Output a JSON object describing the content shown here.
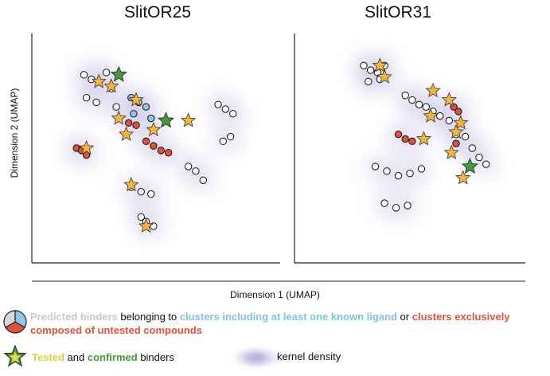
{
  "chart_data": [
    {
      "type": "scatter",
      "title": "SlitOR25",
      "xlabel": "Dimension 1 (UMAP)",
      "ylabel": "Dimension 2 (UMAP)",
      "grid": false,
      "clusters": [
        {
          "category": "untested",
          "x": [
            2.1,
            2.4,
            2.7,
            3.0,
            3.2,
            2.2,
            2.6,
            3.4
          ],
          "y": [
            8.2,
            8.0,
            7.9,
            8.3,
            7.6,
            7.2,
            7.0,
            6.8
          ]
        },
        {
          "category": "known_ligand",
          "x": [
            4.0,
            4.3,
            4.6,
            4.1,
            4.8
          ],
          "y": [
            7.2,
            7.0,
            6.8,
            6.5,
            6.3
          ]
        },
        {
          "category": "exclusive_untested",
          "x": [
            1.8,
            2.0,
            2.2,
            4.6,
            4.9,
            5.2,
            5.5,
            3.9,
            4.2
          ],
          "y": [
            5.0,
            4.9,
            4.7,
            5.3,
            5.1,
            4.9,
            4.8,
            6.1,
            6.0
          ]
        },
        {
          "category": "untested",
          "x": [
            4.0,
            4.4,
            4.8,
            4.4,
            4.6,
            4.9
          ],
          "y": [
            3.3,
            3.1,
            3.0,
            2.0,
            1.8,
            1.6
          ]
        },
        {
          "category": "untested",
          "x": [
            7.5,
            7.8,
            8.1,
            7.7,
            8.0,
            6.3,
            6.6,
            6.9
          ],
          "y": [
            6.9,
            6.7,
            6.5,
            5.3,
            5.5,
            4.2,
            4.0,
            3.6
          ]
        }
      ],
      "confirmed_binders": [
        {
          "x": 2.7,
          "y": 7.9
        },
        {
          "x": 3.2,
          "y": 7.7
        },
        {
          "x": 4.2,
          "y": 7.1
        },
        {
          "x": 3.5,
          "y": 6.3
        },
        {
          "x": 4.9,
          "y": 5.8
        },
        {
          "x": 3.8,
          "y": 5.6
        },
        {
          "x": 2.2,
          "y": 5.0
        },
        {
          "x": 4.0,
          "y": 3.4
        },
        {
          "x": 4.6,
          "y": 1.6
        },
        {
          "x": 6.3,
          "y": 6.2
        }
      ],
      "tested_binders": [
        {
          "x": 3.5,
          "y": 8.2
        },
        {
          "x": 5.4,
          "y": 6.2
        }
      ]
    },
    {
      "type": "scatter",
      "title": "SlitOR31",
      "xlabel": "Dimension 1 (UMAP)",
      "ylabel": "Dimension 2 (UMAP)",
      "grid": false,
      "clusters": [
        {
          "category": "untested",
          "x": [
            3.0,
            3.3,
            3.6,
            3.9,
            3.2,
            3.7
          ],
          "y": [
            8.6,
            8.4,
            8.3,
            8.6,
            7.9,
            8.0
          ]
        },
        {
          "category": "untested",
          "x": [
            4.8,
            5.1,
            5.4,
            5.7,
            6.0,
            6.3,
            6.7
          ],
          "y": [
            7.3,
            7.1,
            6.9,
            6.8,
            6.6,
            6.4,
            6.2
          ]
        },
        {
          "category": "exclusive_untested",
          "x": [
            4.5,
            4.8,
            5.1,
            6.9,
            7.1,
            7.0
          ],
          "y": [
            5.6,
            5.4,
            5.3,
            6.8,
            6.6,
            5.2
          ]
        },
        {
          "category": "untested",
          "x": [
            3.5,
            4.0,
            4.5,
            5.0,
            5.5,
            3.9,
            4.4,
            4.9
          ],
          "y": [
            4.2,
            4.0,
            3.8,
            3.9,
            4.1,
            2.6,
            2.4,
            2.5
          ]
        },
        {
          "category": "untested",
          "x": [
            7.0,
            7.4,
            7.7,
            8.0,
            8.3
          ],
          "y": [
            5.6,
            5.5,
            5.0,
            4.6,
            4.3
          ]
        }
      ],
      "confirmed_binders": [
        {
          "x": 3.7,
          "y": 8.6
        },
        {
          "x": 3.9,
          "y": 8.1
        },
        {
          "x": 6.0,
          "y": 7.5
        },
        {
          "x": 6.7,
          "y": 7.1
        },
        {
          "x": 5.9,
          "y": 6.4
        },
        {
          "x": 7.2,
          "y": 6.1
        },
        {
          "x": 7.0,
          "y": 5.7
        },
        {
          "x": 5.6,
          "y": 5.4
        },
        {
          "x": 6.8,
          "y": 4.8
        },
        {
          "x": 7.3,
          "y": 3.7
        }
      ],
      "tested_binders": [
        {
          "x": 7.6,
          "y": 4.2
        }
      ]
    }
  ],
  "axes": {
    "xlim": [
      0,
      10
    ],
    "ylim": [
      0,
      10
    ]
  },
  "titles": {
    "left": "SlitOR25",
    "right": "SlitOR31"
  },
  "labels": {
    "y_axis": "Dimension 2 (UMAP)",
    "x_axis": "Dimension 1 (UMAP)"
  },
  "legend": {
    "predicted": "Predicted binders",
    "belonging": " belonging to ",
    "known": "clusters including at least one known ligand",
    "or": " or ",
    "exclusive": "clusters exclusively composed of untested compounds",
    "tested": "Tested",
    "and": " and ",
    "confirmed": "confirmed",
    "binders": " binders",
    "kde": "kernel density"
  },
  "colors": {
    "untested": "#ffffff",
    "known_ligand": "#8ec9ec",
    "exclusive_untested": "#e0503a",
    "confirmed_star": "#f5b53a",
    "tested_star": "#3f9b3c",
    "kde": "#7b6cbf"
  }
}
